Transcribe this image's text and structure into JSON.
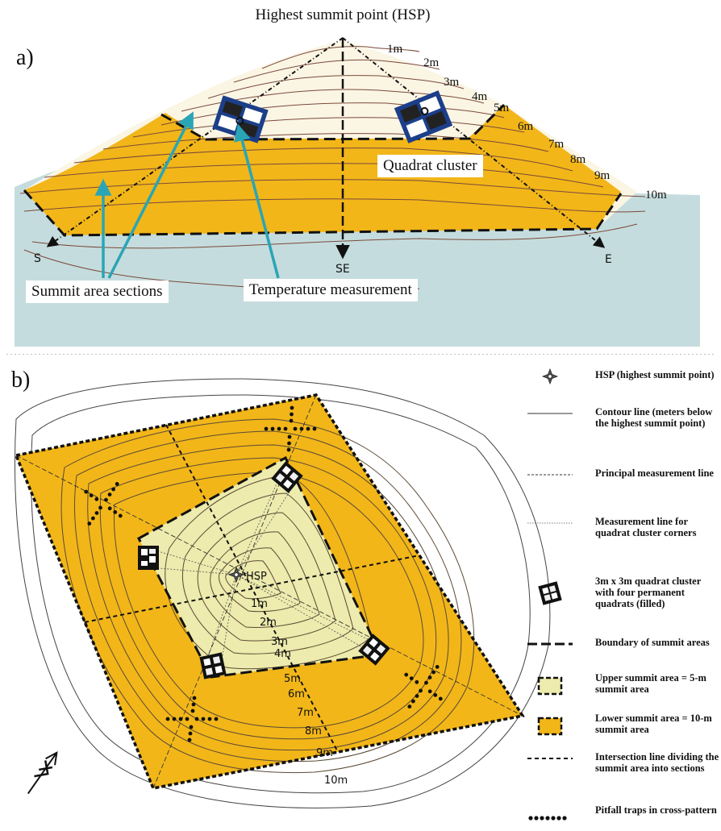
{
  "panel_a": {
    "letter": "a)",
    "title": "Highest summit point (HSP)",
    "contours": [
      "1m",
      "2m",
      "3m",
      "4m",
      "5m",
      "6m",
      "7m",
      "8m",
      "9m",
      "10m"
    ],
    "directions": [
      "S",
      "SE",
      "E"
    ],
    "labels": {
      "quadrat_cluster": "Quadrat cluster",
      "summit_sections": "Summit area sections",
      "temperature": "Temperature measurement"
    }
  },
  "panel_b": {
    "letter": "b)",
    "hsp": "HSP",
    "contours": [
      "1m",
      "2m",
      "3m",
      "4m",
      "5m",
      "6m",
      "7m",
      "8m",
      "9m",
      "10m"
    ]
  },
  "legend": [
    {
      "symbol": "hsp-star",
      "text": "HSP (highest summit point)"
    },
    {
      "symbol": "thin-line",
      "text": "Contour line (meters below the highest summit point)"
    },
    {
      "symbol": "dashed-fine",
      "text": "Principal measurement line"
    },
    {
      "symbol": "dotted-fine",
      "text": "Measurement line for quadrat cluster corners"
    },
    {
      "symbol": "quadrat",
      "text": "3m x 3m quadrat cluster with four permanent quadrats (filled)"
    },
    {
      "symbol": "long-dash",
      "text": "Boundary of summit areas"
    },
    {
      "symbol": "upper-box",
      "text": "Upper summit area = 5-m summit area"
    },
    {
      "symbol": "lower-box",
      "text": "Lower summit area = 10-m summit area"
    },
    {
      "symbol": "short-dash",
      "text": "Intersection line dividing the summit area into sections"
    },
    {
      "symbol": "pitfall-dots",
      "text": "Pitfall traps in cross-pattern"
    }
  ],
  "colors": {
    "upper_area": "#FBF5E4",
    "lower_area": "#F2B619",
    "ground": "#C5DCDE",
    "inner_area": "#EDEBAD",
    "contour": "#7A4A3A",
    "teal_arrow": "#2AA5B5"
  }
}
